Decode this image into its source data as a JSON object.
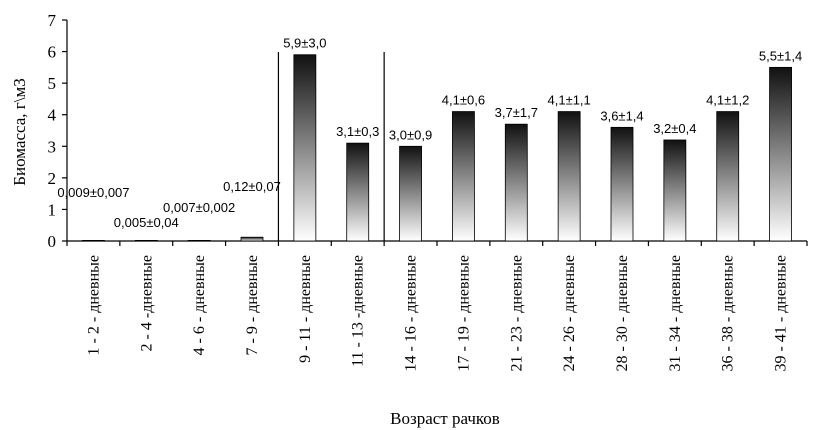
{
  "chart_data": {
    "type": "bar",
    "title": "",
    "xlabel": "Возраст рачков",
    "ylabel": "Биомасса, г\\м3",
    "ylim": [
      0,
      7
    ],
    "yticks": [
      0,
      1,
      2,
      3,
      4,
      5,
      6,
      7
    ],
    "categories": [
      "1 - 2 - дневные",
      "2 - 4 -дневные",
      "4 - 6 - дневные",
      "7 - 9 - дневные",
      "9 - 11 - дневные",
      "11 - 13 -дневные",
      "14 - 16 - дневные",
      "17 - 19 - дневные",
      "21 - 23 - дневные",
      "24 - 26 - дневные",
      "28 - 30 - дневные",
      "31 - 34 - дневные",
      "36 - 38 - дневные",
      "39 - 41 - дневные"
    ],
    "values": [
      0.009,
      0.005,
      0.007,
      0.12,
      5.9,
      3.1,
      3.0,
      4.1,
      3.7,
      4.1,
      3.6,
      3.2,
      4.1,
      5.5
    ],
    "data_labels": [
      "0,009±0,007",
      "0,005±0,04",
      "0,007±0,002",
      "0,12±0,07",
      "5,9±3,0",
      "3,1±0,3",
      "3,0±0,9",
      "4,1±0,6",
      "3,7±1,7",
      "4,1±1,1",
      "3,6±1,4",
      "3,2±0,4",
      "4,1±1,2",
      "5,5±1,4"
    ],
    "separators_after_category": [
      3,
      5
    ],
    "grid": false,
    "bar_gradient": [
      "#111111",
      "#ffffff"
    ]
  }
}
